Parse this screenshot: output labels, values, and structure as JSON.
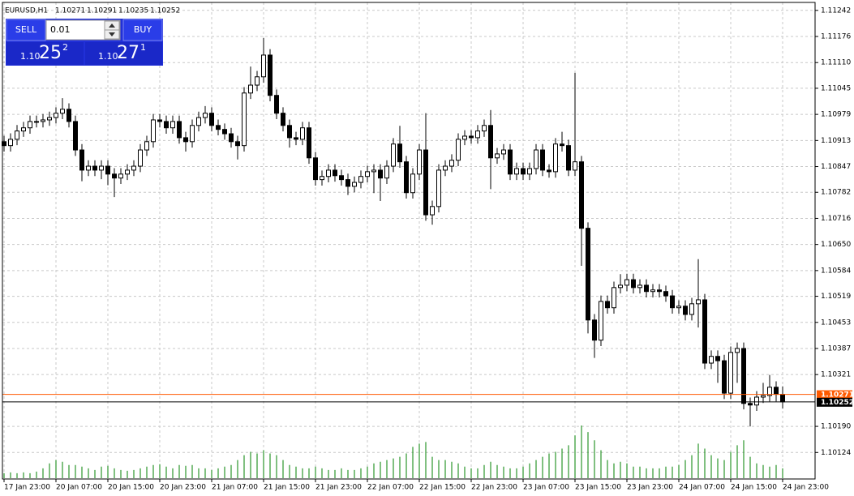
{
  "chart_data": {
    "type": "candlestick",
    "symbol": "EURUSD,H1",
    "ylim": [
      1.10059,
      1.11258
    ],
    "yticks": [
      1.11242,
      1.11176,
      {
        "value": 1.1111,
        "label": "1.11110"
      },
      1.11045,
      1.10979,
      1.10913,
      1.10847,
      1.10782,
      1.10716,
      {
        "value": 1.1065,
        "label": "1.10650"
      },
      1.10584,
      1.10519,
      1.10453,
      1.10387,
      1.10321,
      {
        "value": 1.1019,
        "label": "1.10190"
      },
      1.10124
    ],
    "xticks": [
      {
        "value": 0,
        "label": "17 Jan 23:00"
      },
      {
        "value": 8,
        "label": "20 Jan 07:00"
      },
      {
        "value": 16,
        "label": "20 Jan 15:00"
      },
      {
        "value": 24,
        "label": "20 Jan 23:00"
      },
      {
        "value": 32,
        "label": "21 Jan 07:00"
      },
      {
        "value": 40,
        "label": "21 Jan 15:00"
      },
      {
        "value": 48,
        "label": "21 Jan 23:00"
      },
      {
        "value": 56,
        "label": "22 Jan 07:00"
      },
      {
        "value": 64,
        "label": "22 Jan 15:00"
      },
      {
        "value": 72,
        "label": "22 Jan 23:00"
      },
      {
        "value": 80,
        "label": "23 Jan 07:00"
      },
      {
        "value": 88,
        "label": "23 Jan 15:00"
      },
      {
        "value": 96,
        "label": "23 Jan 23:00"
      },
      {
        "value": 104,
        "label": "24 Jan 07:00"
      },
      {
        "value": 112,
        "label": "24 Jan 15:00"
      },
      {
        "value": 120,
        "label": "24 Jan 23:00"
      }
    ],
    "grid": true,
    "up_color": "#ffffff",
    "down_color": "#000000",
    "volume_color": "#008000",
    "ohlc": [
      [
        1.1091,
        1.10925,
        1.10885,
        1.109
      ],
      [
        1.109,
        1.10931,
        1.10885,
        1.10916
      ],
      [
        1.10916,
        1.10952,
        1.10901,
        1.10937
      ],
      [
        1.10937,
        1.1096,
        1.10922,
        1.10945
      ],
      [
        1.10945,
        1.10976,
        1.1093,
        1.10961
      ],
      [
        1.10961,
        1.10976,
        1.10946,
        1.10961
      ],
      [
        1.10961,
        1.1098,
        1.10946,
        1.10965
      ],
      [
        1.10965,
        1.10986,
        1.1095,
        1.10971
      ],
      [
        1.10971,
        1.10997,
        1.10956,
        1.10982
      ],
      [
        1.10982,
        1.1102,
        1.10967,
        1.10992
      ],
      [
        1.10992,
        1.11007,
        1.10946,
        1.10961
      ],
      [
        1.10961,
        1.10976,
        1.10874,
        1.10889
      ],
      [
        1.10889,
        1.10904,
        1.1081,
        1.10838
      ],
      [
        1.10838,
        1.10863,
        1.10823,
        1.10848
      ],
      [
        1.10848,
        1.10863,
        1.10823,
        1.10838
      ],
      [
        1.10838,
        1.10863,
        1.10815,
        1.10848
      ],
      [
        1.10848,
        1.10863,
        1.108,
        1.10828
      ],
      [
        1.10828,
        1.10843,
        1.1077,
        1.10818
      ],
      [
        1.10818,
        1.10843,
        1.10803,
        1.10828
      ],
      [
        1.10828,
        1.10853,
        1.10813,
        1.10838
      ],
      [
        1.10838,
        1.10863,
        1.10823,
        1.10848
      ],
      [
        1.10848,
        1.10904,
        1.10833,
        1.10889
      ],
      [
        1.10889,
        1.10925,
        1.10874,
        1.1091
      ],
      [
        1.1091,
        1.1098,
        1.10895,
        1.10965
      ],
      [
        1.10965,
        1.1098,
        1.10946,
        1.10961
      ],
      [
        1.10961,
        1.10976,
        1.1093,
        1.10945
      ],
      [
        1.10945,
        1.10976,
        1.1093,
        1.10961
      ],
      [
        1.10961,
        1.10976,
        1.10905,
        1.1092
      ],
      [
        1.1092,
        1.10935,
        1.10885,
        1.1091
      ],
      [
        1.1091,
        1.10966,
        1.10895,
        1.10951
      ],
      [
        1.10951,
        1.10986,
        1.10936,
        1.10971
      ],
      [
        1.10971,
        1.11,
        1.10956,
        1.10982
      ],
      [
        1.10982,
        1.10997,
        1.10936,
        1.10951
      ],
      [
        1.10951,
        1.10966,
        1.10926,
        1.10941
      ],
      [
        1.10941,
        1.10956,
        1.10915,
        1.1093
      ],
      [
        1.1093,
        1.10945,
        1.10895,
        1.1091
      ],
      [
        1.1091,
        1.10925,
        1.10865,
        1.109
      ],
      [
        1.109,
        1.11048,
        1.10885,
        1.11033
      ],
      [
        1.11033,
        1.111,
        1.11018,
        1.11053
      ],
      [
        1.11053,
        1.11089,
        1.11038,
        1.11074
      ],
      [
        1.11074,
        1.11172,
        1.11059,
        1.11129
      ],
      [
        1.11129,
        1.11144,
        1.11012,
        1.11027
      ],
      [
        1.11027,
        1.11042,
        1.10967,
        1.10982
      ],
      [
        1.10982,
        1.10997,
        1.10936,
        1.10951
      ],
      [
        1.10951,
        1.10966,
        1.10895,
        1.1092
      ],
      [
        1.1092,
        1.10935,
        1.10901,
        1.10916
      ],
      [
        1.10916,
        1.1096,
        1.10901,
        1.10945
      ],
      [
        1.10945,
        1.1096,
        1.10854,
        1.10869
      ],
      [
        1.10869,
        1.10884,
        1.10799,
        1.10814
      ],
      [
        1.10814,
        1.10837,
        1.10799,
        1.10822
      ],
      [
        1.10822,
        1.10853,
        1.10807,
        1.10838
      ],
      [
        1.10838,
        1.10853,
        1.10809,
        1.10824
      ],
      [
        1.10824,
        1.10839,
        1.10799,
        1.10814
      ],
      [
        1.10814,
        1.10829,
        1.10775,
        1.10797
      ],
      [
        1.10797,
        1.10822,
        1.10782,
        1.10807
      ],
      [
        1.10807,
        1.10837,
        1.10792,
        1.10822
      ],
      [
        1.10822,
        1.10849,
        1.10807,
        1.10834
      ],
      [
        1.10834,
        1.10853,
        1.1078,
        1.10838
      ],
      [
        1.10838,
        1.10853,
        1.1076,
        1.10818
      ],
      [
        1.10818,
        1.10863,
        1.10803,
        1.10848
      ],
      [
        1.10848,
        1.10919,
        1.10833,
        1.10904
      ],
      [
        1.10904,
        1.1095,
        1.10844,
        1.10859
      ],
      [
        1.10859,
        1.10874,
        1.10766,
        1.10781
      ],
      [
        1.10781,
        1.10843,
        1.10766,
        1.10828
      ],
      [
        1.10828,
        1.10904,
        1.10813,
        1.10889
      ],
      [
        1.10889,
        1.10982,
        1.1071,
        1.10725
      ],
      [
        1.10725,
        1.10761,
        1.107,
        1.10746
      ],
      [
        1.10746,
        1.10853,
        1.10731,
        1.10838
      ],
      [
        1.10838,
        1.10863,
        1.10823,
        1.10848
      ],
      [
        1.10848,
        1.10878,
        1.10833,
        1.10863
      ],
      [
        1.10863,
        1.10931,
        1.10848,
        1.10916
      ],
      [
        1.10916,
        1.10939,
        1.10901,
        1.10924
      ],
      [
        1.10924,
        1.10939,
        1.10905,
        1.1092
      ],
      [
        1.1092,
        1.10952,
        1.10905,
        1.10937
      ],
      [
        1.10937,
        1.10966,
        1.10922,
        1.10951
      ],
      [
        1.10951,
        1.1099,
        1.1079,
        1.10869
      ],
      [
        1.10869,
        1.10894,
        1.10854,
        1.10879
      ],
      [
        1.10879,
        1.10904,
        1.10864,
        1.10889
      ],
      [
        1.10889,
        1.10904,
        1.10813,
        1.10828
      ],
      [
        1.10828,
        1.10857,
        1.10813,
        1.10842
      ],
      [
        1.10842,
        1.10857,
        1.10813,
        1.10828
      ],
      [
        1.10828,
        1.10857,
        1.10813,
        1.10842
      ],
      [
        1.10842,
        1.10904,
        1.10827,
        1.10889
      ],
      [
        1.10889,
        1.10904,
        1.10823,
        1.10838
      ],
      [
        1.10838,
        1.10853,
        1.10819,
        1.10834
      ],
      [
        1.10834,
        1.10919,
        1.10819,
        1.10904
      ],
      [
        1.10904,
        1.10935,
        1.10885,
        1.109
      ],
      [
        1.109,
        1.10915,
        1.10823,
        1.10838
      ],
      [
        1.10838,
        1.11084,
        1.10823,
        1.10859
      ],
      [
        1.10859,
        1.10874,
        1.10596,
        1.10691
      ],
      [
        1.10691,
        1.10706,
        1.10425,
        1.10459
      ],
      [
        1.10459,
        1.10474,
        1.10363,
        1.10408
      ],
      [
        1.10408,
        1.10521,
        1.10393,
        1.10506
      ],
      [
        1.10506,
        1.10521,
        1.10475,
        1.1049
      ],
      [
        1.1049,
        1.10556,
        1.10475,
        1.10541
      ],
      [
        1.10541,
        1.10575,
        1.10526,
        1.10547
      ],
      [
        1.10547,
        1.10576,
        1.10532,
        1.10561
      ],
      [
        1.10561,
        1.10576,
        1.10526,
        1.10541
      ],
      [
        1.10541,
        1.10562,
        1.10526,
        1.10547
      ],
      [
        1.10547,
        1.10562,
        1.10516,
        1.10531
      ],
      [
        1.10531,
        1.1055,
        1.10516,
        1.10535
      ],
      [
        1.10535,
        1.1055,
        1.10516,
        1.10531
      ],
      [
        1.10531,
        1.10546,
        1.10505,
        1.1052
      ],
      [
        1.1052,
        1.10535,
        1.10475,
        1.1049
      ],
      [
        1.1049,
        1.10509,
        1.10475,
        1.10494
      ],
      [
        1.10494,
        1.10509,
        1.10458,
        1.10473
      ],
      [
        1.10473,
        1.10515,
        1.10458,
        1.105
      ],
      [
        1.105,
        1.10613,
        1.1044,
        1.1051
      ],
      [
        1.1051,
        1.10525,
        1.10335,
        1.1035
      ],
      [
        1.1035,
        1.10382,
        1.10335,
        1.10367
      ],
      [
        1.10367,
        1.10382,
        1.103,
        1.10356
      ],
      [
        1.10356,
        1.10371,
        1.10259,
        1.10274
      ],
      [
        1.10274,
        1.10392,
        1.10259,
        1.10377
      ],
      [
        1.10377,
        1.10402,
        1.103,
        1.10387
      ],
      [
        1.10387,
        1.10402,
        1.10233,
        1.10248
      ],
      [
        1.10248,
        1.10263,
        1.1019,
        1.10244
      ],
      [
        1.10244,
        1.10279,
        1.10229,
        1.10264
      ],
      [
        1.10264,
        1.103,
        1.10249,
        1.10268
      ],
      [
        1.10268,
        1.1032,
        1.10253,
        1.10289
      ],
      [
        1.10289,
        1.10304,
        1.10253,
        1.10271
      ],
      [
        1.10271,
        1.10291,
        1.10235,
        1.10252
      ]
    ],
    "volumes": [
      6,
      7,
      6,
      7,
      6,
      8,
      12,
      18,
      22,
      20,
      16,
      16,
      14,
      12,
      10,
      14,
      15,
      12,
      10,
      9,
      10,
      12,
      14,
      16,
      17,
      14,
      12,
      16,
      15,
      16,
      12,
      12,
      10,
      12,
      14,
      16,
      22,
      28,
      32,
      30,
      34,
      30,
      28,
      22,
      16,
      14,
      12,
      12,
      14,
      12,
      10,
      10,
      12,
      10,
      10,
      12,
      14,
      18,
      20,
      22,
      24,
      26,
      30,
      38,
      42,
      44,
      26,
      22,
      22,
      20,
      18,
      14,
      12,
      12,
      16,
      20,
      16,
      14,
      12,
      12,
      14,
      18,
      22,
      26,
      30,
      32,
      36,
      40,
      52,
      64,
      56,
      46,
      34,
      22,
      18,
      20,
      18,
      14,
      14,
      12,
      12,
      12,
      14,
      14,
      16,
      22,
      28,
      42,
      36,
      28,
      24,
      22,
      32,
      40,
      46,
      26,
      18,
      16,
      14,
      16,
      12
    ],
    "price_lines": [
      {
        "value": 1.10271,
        "color": "#ff5a00"
      },
      {
        "value": 1.10252,
        "color": "#000000"
      }
    ],
    "trade_panel": {
      "sell_label": "SELL",
      "buy_label": "BUY",
      "lot": "0.01",
      "sell_price": {
        "prefix": "1.10",
        "big": "25",
        "small": "2"
      },
      "buy_price": {
        "prefix": "1.10",
        "big": "27",
        "small": "1"
      }
    }
  }
}
